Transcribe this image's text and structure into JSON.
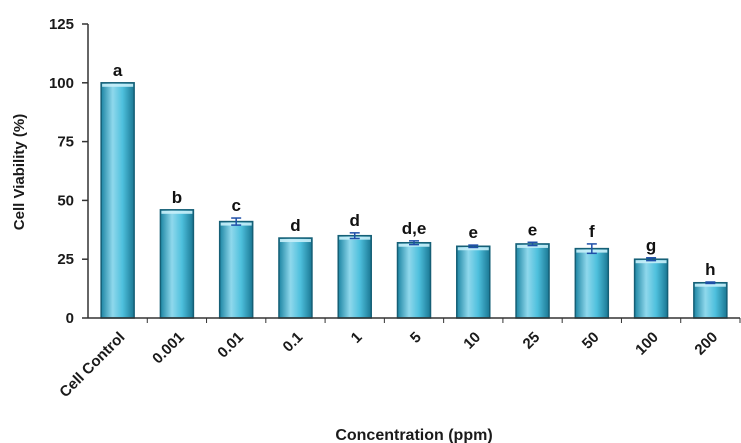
{
  "chart_data": {
    "type": "bar",
    "title": "",
    "xlabel": "Concentration (ppm)",
    "ylabel": "Cell Viability (%)",
    "ylim": [
      0,
      125
    ],
    "yticks": [
      "0",
      "25",
      "50",
      "75",
      "100",
      "125"
    ],
    "grid": false,
    "legend": "none",
    "categories": [
      "Cell Control",
      "0.001",
      "0.01",
      "0.1",
      "1",
      "5",
      "10",
      "25",
      "50",
      "100",
      "200"
    ],
    "values": [
      100,
      46,
      41,
      34,
      35,
      32,
      30.5,
      31.5,
      29.5,
      25,
      15
    ],
    "errors": [
      0,
      0,
      1.5,
      0,
      1.2,
      0.8,
      0.5,
      0.7,
      2,
      0.6,
      0.3
    ],
    "labels": [
      "a",
      "b",
      "c",
      "d",
      "d",
      "d,e",
      "e",
      "e",
      "f",
      "g",
      "h"
    ],
    "colors": {
      "bar_light": "#a9e4f2",
      "bar_mid": "#3fb2d1",
      "bar_dark": "#197a97",
      "error": "#1f4fa8",
      "axis": "#333333"
    }
  }
}
